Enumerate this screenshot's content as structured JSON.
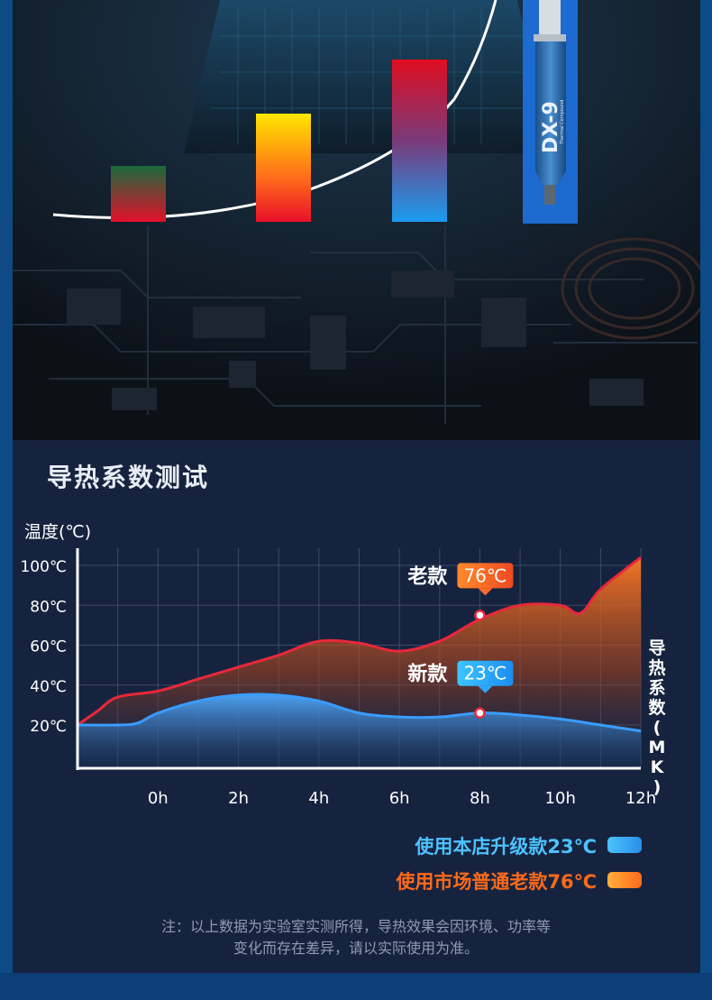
{
  "hero": {
    "product_tube_label": "DX-9",
    "product_tube_sublabel": "Thermal Compound"
  },
  "section": {
    "title": "导热系数测试"
  },
  "chart_data": {
    "type": "area",
    "title": "",
    "ylabel": "温度(℃)",
    "y2label": "导热系数(MK)",
    "y_ticks": [
      "100℃",
      "80℃",
      "60℃",
      "40℃",
      "20℃"
    ],
    "x_ticks": [
      "0h",
      "2h",
      "4h",
      "6h",
      "8h",
      "10h",
      "12h"
    ],
    "ylim": [
      0,
      110
    ],
    "xlim": [
      -2,
      12
    ],
    "grid": true,
    "series": [
      {
        "name": "使用市场普通老款76℃",
        "color": "#ff7a2a",
        "x": [
          -2,
          -1.5,
          -1,
          0,
          1,
          2,
          3,
          4,
          5,
          6,
          7,
          8,
          9,
          10,
          10.5,
          11,
          12
        ],
        "values": [
          20,
          27,
          34,
          37,
          43,
          49,
          55,
          62,
          61,
          57,
          62,
          73,
          80,
          80,
          76,
          88,
          104
        ]
      },
      {
        "name": "使用本店升级款23℃",
        "color": "#3aa6ff",
        "x": [
          -2,
          -1,
          -0.5,
          0,
          1,
          2,
          3,
          4,
          5,
          6,
          7,
          8,
          9,
          10,
          11,
          12
        ],
        "values": [
          20,
          20,
          21,
          26,
          32,
          35,
          35,
          32,
          26,
          24,
          24,
          26,
          25,
          23,
          20,
          17
        ]
      }
    ],
    "annotations": [
      {
        "label": "老款",
        "value": "76℃",
        "x": 8,
        "y": 75,
        "color": "#ff6a2a"
      },
      {
        "label": "新款",
        "value": "23℃",
        "x": 8,
        "y": 26,
        "color": "#2aa8ff"
      }
    ]
  },
  "legend": {
    "new_label": "使用本店升级款23℃",
    "new_color": "#4cc2ff",
    "old_label": "使用市场普通老款76℃",
    "old_color": "#ff6a1a"
  },
  "note": {
    "line1": "注：以上数据为实验室实测所得，导热效果会因环境、功率等",
    "line2": "变化而存在差异，请以实际使用为准。"
  }
}
